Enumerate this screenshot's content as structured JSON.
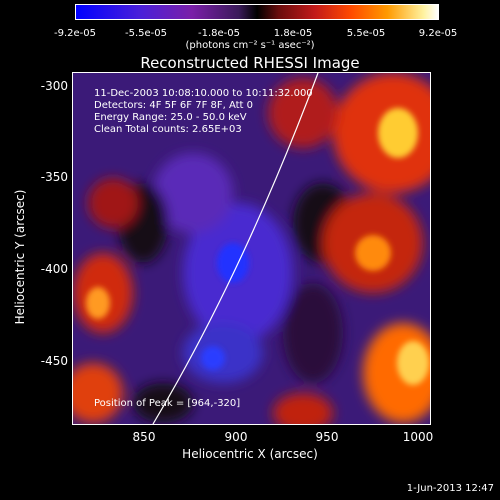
{
  "colorbar": {
    "ticks": [
      "-9.2e-05",
      "-5.5e-05",
      "-1.8e-05",
      "1.8e-05",
      "5.5e-05",
      "9.2e-05"
    ],
    "units": "(photons cm⁻² s⁻¹ asec⁻²)"
  },
  "plot": {
    "title": "Reconstructed RHESSI Image",
    "info": {
      "line1": "11-Dec-2003 10:08:10.000 to 10:11:32.000",
      "line2": "Detectors: 4F 5F 6F 7F 8F, Att 0",
      "line3": "Energy Range: 25.0 - 50.0 keV",
      "line4": "Clean    Total counts: 2.65E+03"
    },
    "peak_label": "Position of Peak = [964,-320]",
    "x_axis": {
      "label": "Heliocentric X (arcsec)",
      "ticks": [
        "850",
        "900",
        "950",
        "1000"
      ]
    },
    "y_axis": {
      "label": "Heliocentric Y (arcsec)",
      "ticks": [
        "-300",
        "-350",
        "-400",
        "-450"
      ]
    }
  },
  "timestamp": "1-Jun-2013 12:47"
}
